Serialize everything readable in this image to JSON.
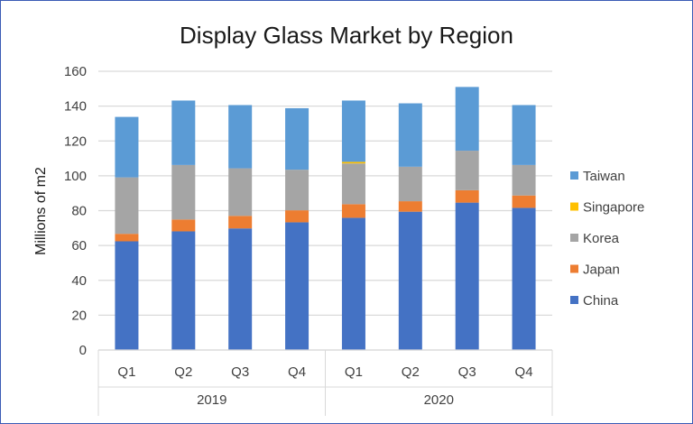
{
  "chart_data": {
    "type": "bar",
    "stacked": true,
    "title": "Display Glass Market by Region",
    "ylabel": "Millions of m2",
    "xlabel": "",
    "ylim": [
      0,
      160
    ],
    "yticks": [
      0,
      20,
      40,
      60,
      80,
      100,
      120,
      140,
      160
    ],
    "grid": true,
    "legend_position": "right",
    "groups": [
      {
        "label": "2019",
        "categories": [
          "Q1",
          "Q2",
          "Q3",
          "Q4"
        ]
      },
      {
        "label": "2020",
        "categories": [
          "Q1",
          "Q2",
          "Q3",
          "Q4"
        ]
      }
    ],
    "series": [
      {
        "name": "China",
        "color": "#4472C4",
        "values": [
          62.4,
          68.1,
          69.8,
          73.3,
          75.9,
          79.4,
          84.6,
          81.6
        ]
      },
      {
        "name": "Japan",
        "color": "#ED7D31",
        "values": [
          4.3,
          6.8,
          7.2,
          6.9,
          7.8,
          6.0,
          7.1,
          7.1
        ]
      },
      {
        "name": "Korea",
        "color": "#A5A5A5",
        "values": [
          32.4,
          31.3,
          27.3,
          23.3,
          23.4,
          19.8,
          22.7,
          17.5
        ]
      },
      {
        "name": "Singapore",
        "color": "#FFC000",
        "values": [
          0,
          0,
          0,
          0,
          0.9,
          0,
          0,
          0
        ]
      },
      {
        "name": "Taiwan",
        "color": "#5B9BD5",
        "values": [
          34.7,
          37.0,
          36.3,
          35.3,
          35.2,
          36.4,
          36.6,
          34.4
        ]
      }
    ]
  }
}
